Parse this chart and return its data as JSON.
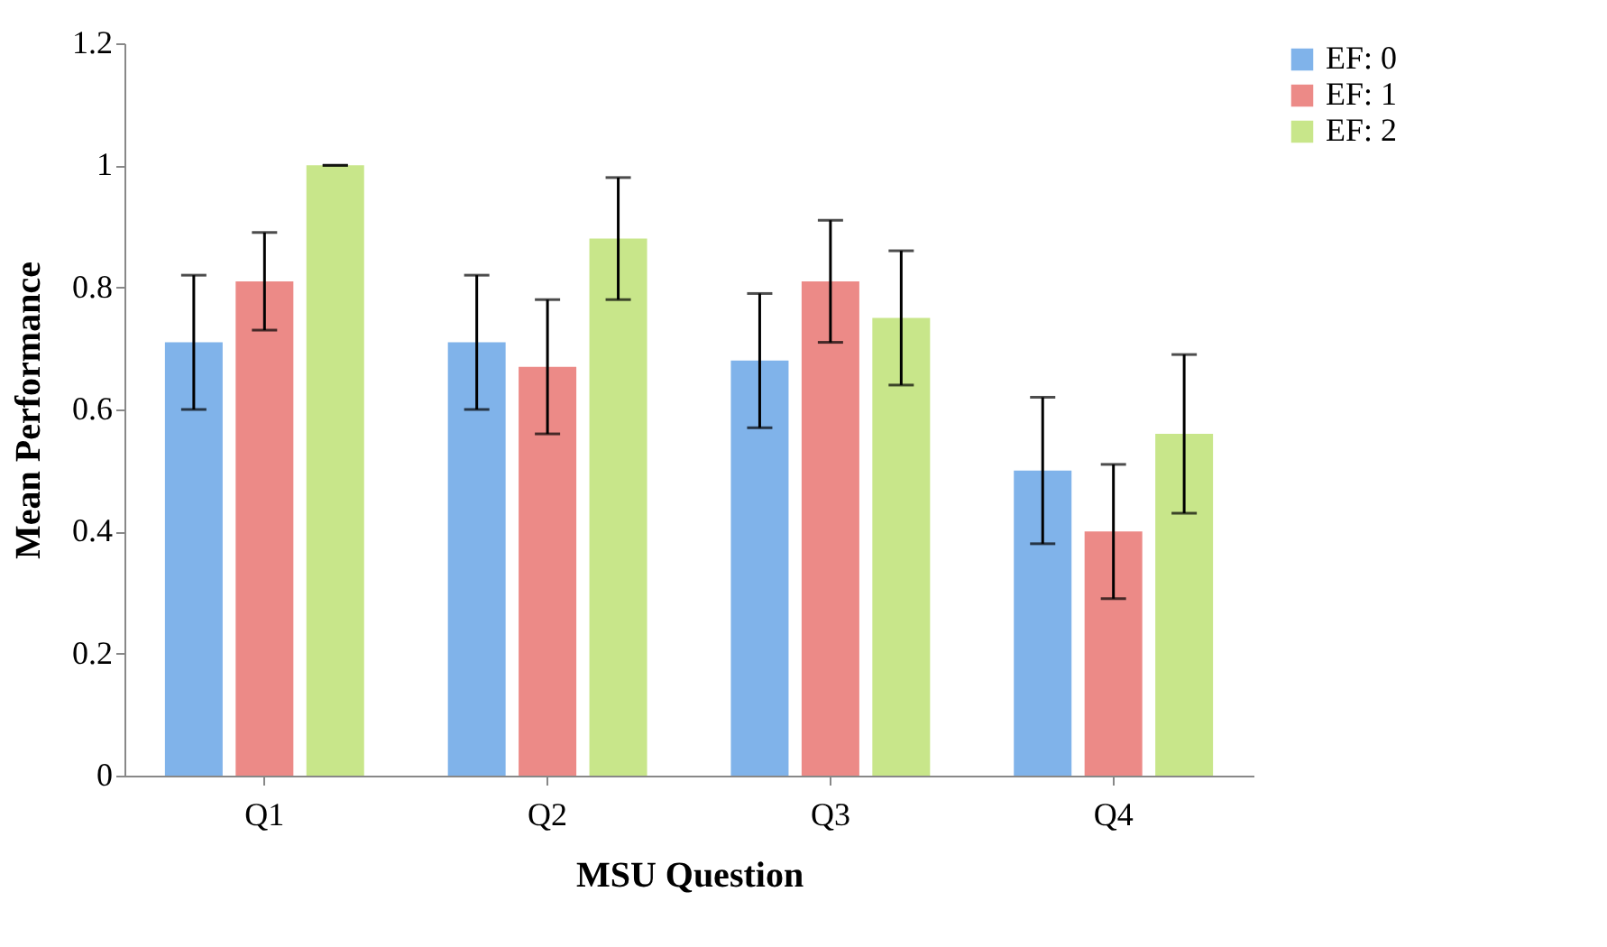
{
  "chart_data": {
    "type": "bar",
    "xlabel": "MSU Question",
    "ylabel": "Mean Performance",
    "categories": [
      "Q1",
      "Q2",
      "Q3",
      "Q4"
    ],
    "series": [
      {
        "name": "EF: 0",
        "color": "#80b3ea",
        "values": [
          0.71,
          0.71,
          0.68,
          0.5
        ],
        "errors": [
          [
            0.6,
            0.82
          ],
          [
            0.6,
            0.82
          ],
          [
            0.57,
            0.79
          ],
          [
            0.38,
            0.62
          ]
        ]
      },
      {
        "name": "EF: 1",
        "color": "#ec8a87",
        "values": [
          0.81,
          0.67,
          0.81,
          0.4
        ],
        "errors": [
          [
            0.73,
            0.89
          ],
          [
            0.56,
            0.78
          ],
          [
            0.71,
            0.91
          ],
          [
            0.29,
            0.51
          ]
        ]
      },
      {
        "name": "EF: 2",
        "color": "#c8e68a",
        "values": [
          1.0,
          0.88,
          0.75,
          0.56
        ],
        "errors": [
          [
            1.0,
            1.0
          ],
          [
            0.78,
            0.98
          ],
          [
            0.64,
            0.86
          ],
          [
            0.43,
            0.69
          ]
        ]
      }
    ],
    "ylim": [
      0,
      1.2
    ],
    "yticks": [
      0,
      0.2,
      0.4,
      0.6,
      0.8,
      1,
      1.2
    ],
    "grid": false,
    "legend": "right"
  }
}
